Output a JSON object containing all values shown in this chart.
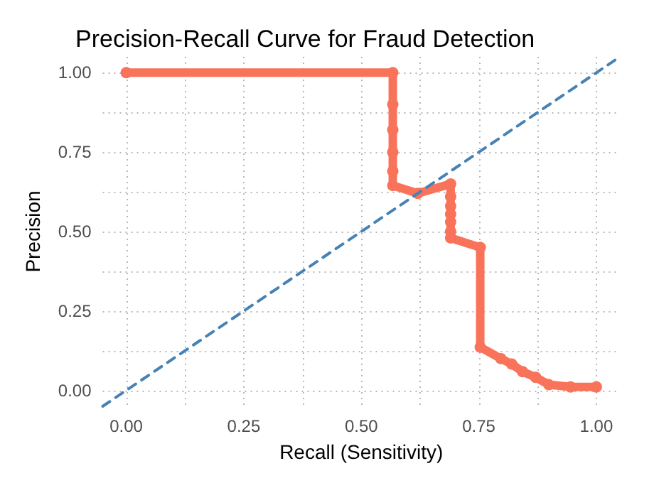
{
  "chart_data": {
    "type": "line",
    "title": "Precision-Recall Curve for Fraud Detection",
    "xlabel": "Recall (Sensitivity)",
    "ylabel": "Precision",
    "series": [
      {
        "color": "#f8735a",
        "marker": "circle",
        "line_style": "solid",
        "x": [
          0,
          0.567,
          0.567,
          0.567,
          0.567,
          0.567,
          0.567,
          0.62,
          0.69,
          0.69,
          0.69,
          0.69,
          0.69,
          0.69,
          0.69,
          0.753,
          0.753,
          0.797,
          0.82,
          0.843,
          0.871,
          0.899,
          0.945,
          1.0
        ],
        "values": [
          1,
          1,
          0.9,
          0.82,
          0.75,
          0.69,
          0.645,
          0.62,
          0.65,
          0.61,
          0.58,
          0.555,
          0.53,
          0.5,
          0.48,
          0.45,
          0.136,
          0.1,
          0.083,
          0.059,
          0.041,
          0.018,
          0.011,
          0.011
        ]
      },
      {
        "color": "#4682b4",
        "marker": "none",
        "line_style": "dashed",
        "x": [
          -0.05,
          1.05
        ],
        "values": [
          -0.05,
          1.05
        ]
      }
    ],
    "xlim": [
      -0.05,
      1.05
    ],
    "ylim": [
      -0.05,
      1.05
    ],
    "xticks": [
      {
        "value": 0,
        "label": "0.00"
      },
      {
        "value": 0.125,
        "label": null
      },
      {
        "value": 0.25,
        "label": "0.25"
      },
      {
        "value": 0.375,
        "label": null
      },
      {
        "value": 0.5,
        "label": "0.50"
      },
      {
        "value": 0.625,
        "label": null
      },
      {
        "value": 0.75,
        "label": "0.75"
      },
      {
        "value": 0.875,
        "label": null
      },
      {
        "value": 1,
        "label": "1.00"
      }
    ],
    "yticks": [
      {
        "value": 0,
        "label": "0.00"
      },
      {
        "value": 0.125,
        "label": null
      },
      {
        "value": 0.25,
        "label": "0.25"
      },
      {
        "value": 0.375,
        "label": null
      },
      {
        "value": 0.5,
        "label": "0.50"
      },
      {
        "value": 0.625,
        "label": null
      },
      {
        "value": 0.75,
        "label": "0.75"
      },
      {
        "value": 0.875,
        "label": null
      },
      {
        "value": 1,
        "label": "1.00"
      }
    ],
    "grid": true
  }
}
